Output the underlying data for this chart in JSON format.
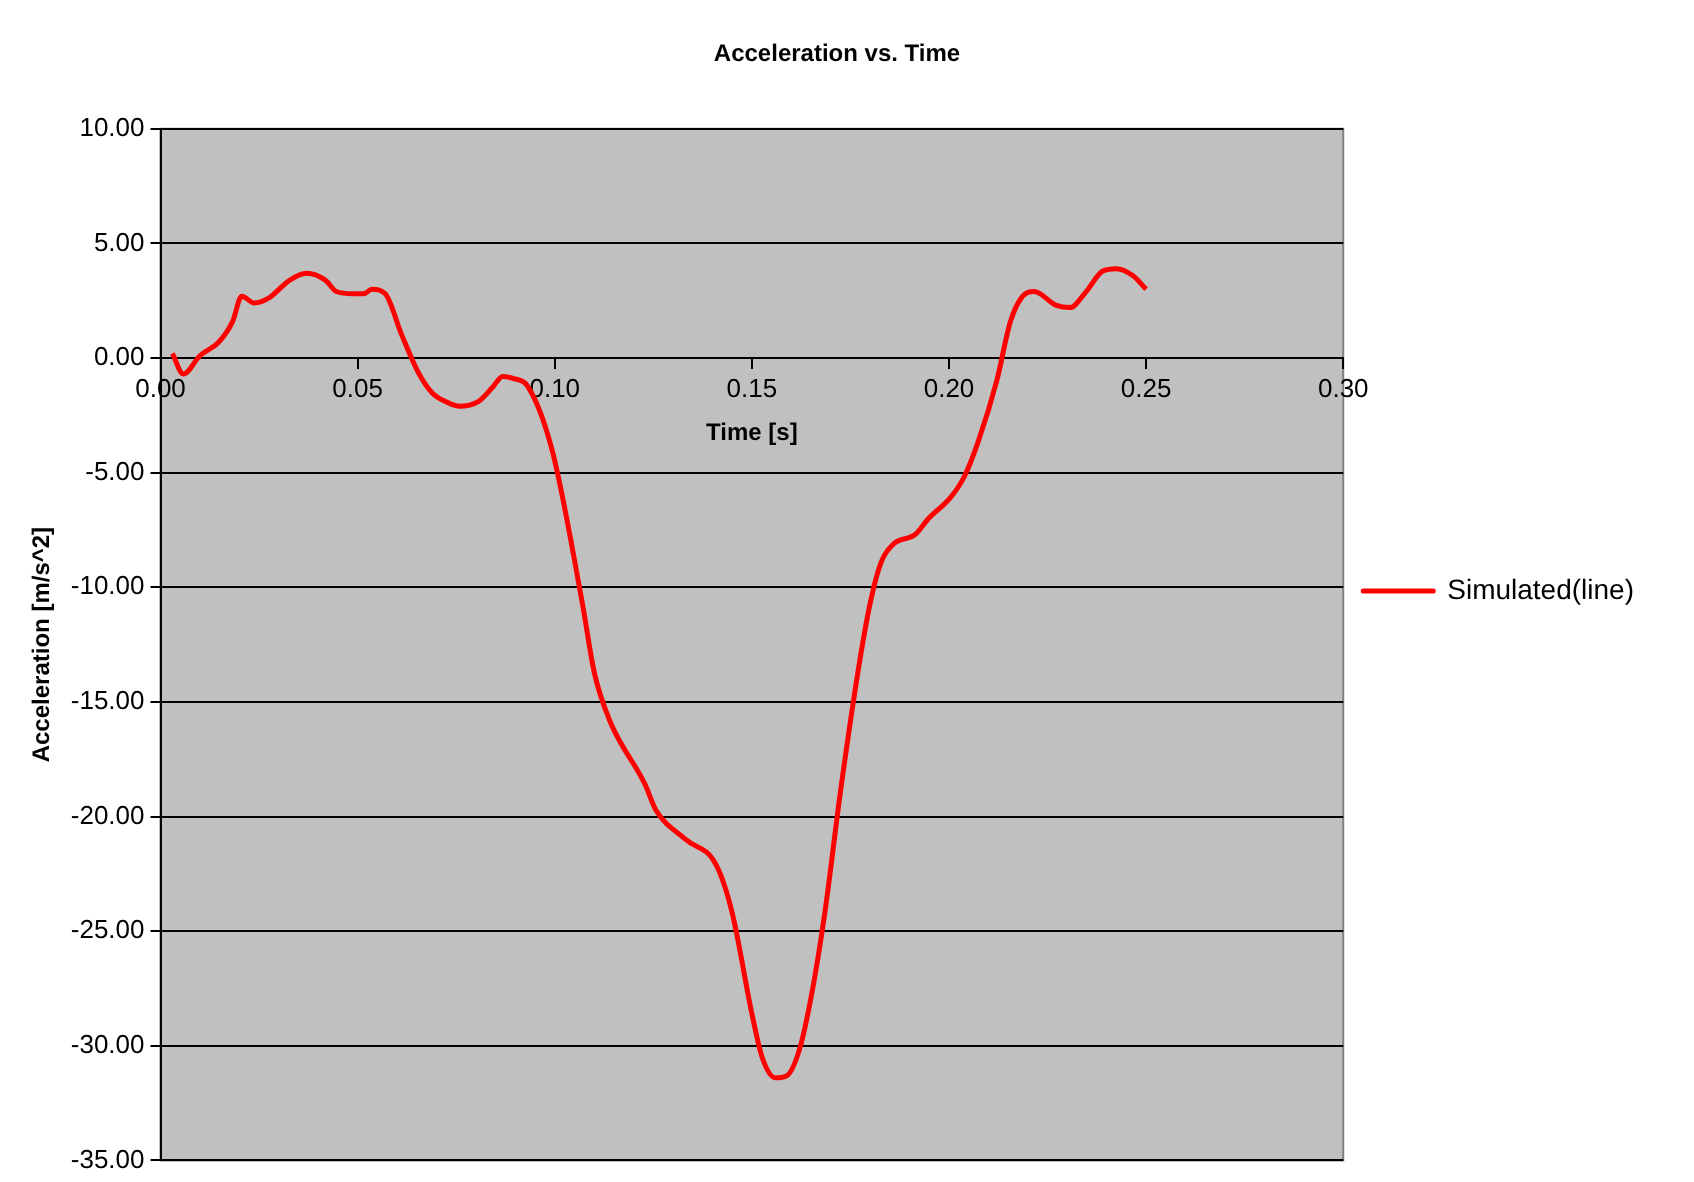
{
  "chart_data": {
    "type": "line",
    "title": "Acceleration vs. Time",
    "xlabel": "Time [s]",
    "ylabel": "Acceleration [m/s^2]",
    "x": [
      0.003,
      0.0058,
      0.01,
      0.0148,
      0.0183,
      0.0206,
      0.0238,
      0.0273,
      0.0328,
      0.037,
      0.0418,
      0.0446,
      0.0488,
      0.0515,
      0.0536,
      0.057,
      0.0612,
      0.0653,
      0.0688,
      0.0723,
      0.0757,
      0.0806,
      0.0841,
      0.0868,
      0.0896,
      0.093,
      0.0993,
      0.107,
      0.11,
      0.1139,
      0.1229,
      0.1256,
      0.1332,
      0.1409,
      0.145,
      0.15,
      0.1526,
      0.156,
      0.1589,
      0.162,
      0.165,
      0.1685,
      0.1724,
      0.1769,
      0.18,
      0.1828,
      0.186,
      0.1914,
      0.1948,
      0.2003,
      0.2038,
      0.2073,
      0.2121,
      0.2156,
      0.2187,
      0.2216,
      0.2272,
      0.2307,
      0.2348,
      0.239,
      0.2424,
      0.2466,
      0.25
    ],
    "series": [
      {
        "name": "Simulated(line)",
        "color": "#ff0000",
        "values": [
          0.2,
          -0.7,
          0.1,
          0.7,
          1.6,
          2.7,
          2.4,
          2.6,
          3.4,
          3.7,
          3.4,
          2.9,
          2.8,
          2.8,
          3.0,
          2.8,
          1.0,
          -0.6,
          -1.5,
          -1.9,
          -2.1,
          -1.9,
          -1.3,
          -0.8,
          -0.9,
          -1.2,
          -4.0,
          -10.7,
          -13.7,
          -15.8,
          -18.6,
          -19.7,
          -21.0,
          -22.1,
          -24.2,
          -28.6,
          -30.5,
          -31.4,
          -31.3,
          -30.2,
          -27.9,
          -24.2,
          -19.0,
          -13.7,
          -10.7,
          -8.9,
          -8.1,
          -7.7,
          -7.0,
          -6.1,
          -5.2,
          -3.7,
          -1.0,
          1.6,
          2.7,
          2.9,
          2.3,
          2.2,
          2.9,
          3.8,
          3.9,
          3.6,
          3.0
        ]
      }
    ],
    "xlim": [
      0,
      0.3
    ],
    "xticks": [
      {
        "value": 0,
        "label": "0.00"
      },
      {
        "value": 0.05,
        "label": "0.05"
      },
      {
        "value": 0.1,
        "label": "0.10"
      },
      {
        "value": 0.15,
        "label": "0.15"
      },
      {
        "value": 0.2,
        "label": "0.20"
      },
      {
        "value": 0.25,
        "label": "0.25"
      },
      {
        "value": 0.3,
        "label": "0.30"
      }
    ],
    "ylim": [
      -35,
      10
    ],
    "yticks": [
      {
        "value": -35,
        "label": "-35.00"
      },
      {
        "value": -30,
        "label": "-30.00"
      },
      {
        "value": -25,
        "label": "-25.00"
      },
      {
        "value": -20,
        "label": "-20.00"
      },
      {
        "value": -15,
        "label": "-15.00"
      },
      {
        "value": -10,
        "label": "-10.00"
      },
      {
        "value": -5,
        "label": "-5.00"
      },
      {
        "value": 0,
        "label": "0.00"
      },
      {
        "value": 5,
        "label": "5.00"
      },
      {
        "value": 10,
        "label": "10.00"
      }
    ],
    "grid": "y",
    "legend": "right",
    "marker": "none",
    "line_style": "solid"
  }
}
